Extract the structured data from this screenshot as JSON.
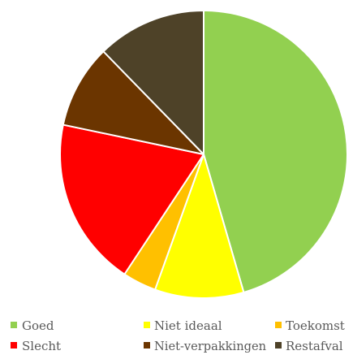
{
  "chart_data": {
    "type": "pie",
    "title": "",
    "start_angle_deg": 0,
    "direction": "clockwise",
    "legend_position": "bottom",
    "slices": [
      {
        "label": "Goed",
        "value": 45.5,
        "color": "#92d050"
      },
      {
        "label": "Niet ideaal",
        "value": 10.0,
        "color": "#ffff00"
      },
      {
        "label": "Toekomst",
        "value": 3.8,
        "color": "#ffc000"
      },
      {
        "label": "Slecht",
        "value": 19.0,
        "color": "#ff0000"
      },
      {
        "label": "Niet-verpakkingen",
        "value": 9.4,
        "color": "#6b3500"
      },
      {
        "label": "Restafval",
        "value": 12.3,
        "color": "#4e4228"
      }
    ]
  }
}
